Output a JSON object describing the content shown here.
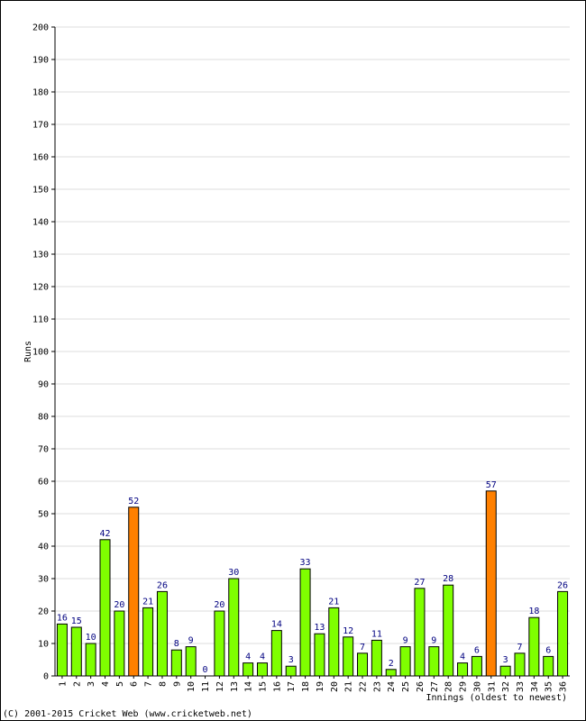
{
  "chart_data": {
    "type": "bar",
    "ylabel": "Runs",
    "xlabel": "Innings (oldest to newest)",
    "ylim": [
      0,
      200
    ],
    "ytick_step": 10,
    "grid": true,
    "categories": [
      "1",
      "2",
      "3",
      "4",
      "5",
      "6",
      "7",
      "8",
      "9",
      "10",
      "11",
      "12",
      "13",
      "14",
      "15",
      "16",
      "17",
      "18",
      "19",
      "20",
      "21",
      "22",
      "23",
      "24",
      "25",
      "26",
      "27",
      "28",
      "29",
      "30",
      "31",
      "32",
      "33",
      "34",
      "35",
      "36"
    ],
    "values": [
      16,
      15,
      10,
      42,
      20,
      52,
      21,
      26,
      8,
      9,
      0,
      20,
      30,
      4,
      4,
      14,
      3,
      33,
      13,
      21,
      12,
      7,
      11,
      2,
      9,
      27,
      9,
      28,
      4,
      6,
      57,
      3,
      7,
      18,
      6,
      26
    ],
    "highlighted": [
      "6",
      "31"
    ],
    "colors": {
      "bar": "#7fff00",
      "highlight": "#ff8000",
      "bar_outline": "#000000",
      "value_label": "#000080",
      "grid": "#dddddd",
      "axis": "#000000"
    }
  },
  "footer": {
    "copyright": "(C) 2001-2015 Cricket Web (www.cricketweb.net)"
  }
}
